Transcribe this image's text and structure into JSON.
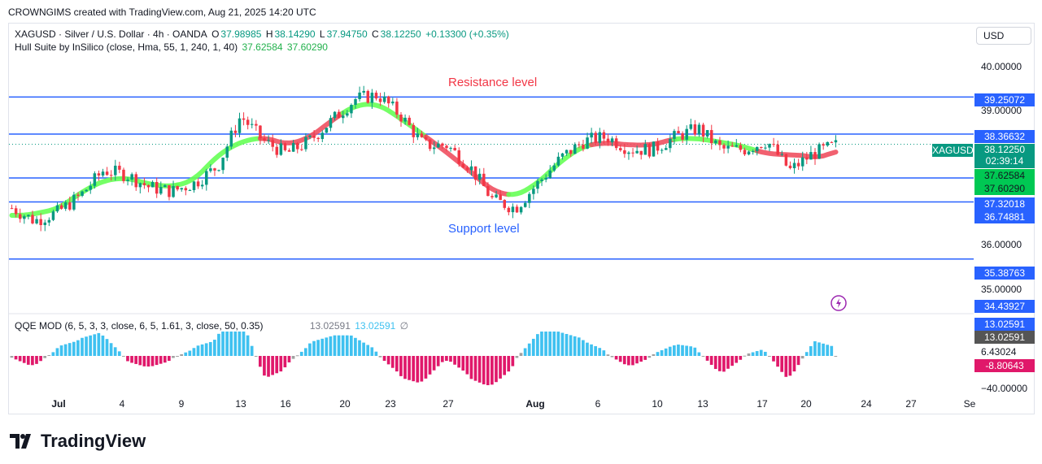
{
  "header": "CROWNGIMS created with TradingView.com, Aug 21, 2025 14:20 UTC",
  "legend": {
    "symbol": "XAGUSD · Silver / U.S. Dollar · 4h · OANDA",
    "o_label": "O",
    "o": "37.98985",
    "h_label": "H",
    "h": "38.14290",
    "l_label": "L",
    "l": "37.94750",
    "c_label": "C",
    "c": "38.12250",
    "change": "+0.13300 (+0.35%)",
    "hull_label": "Hull Suite by InSilico (close, Hma, 55, 1, 240, 1, 40)",
    "hull_v1": "37.62584",
    "hull_v2": "37.60290",
    "qqe_label": "QQE MOD (6, 5, 3, 3, close, 6, 5, 1.61, 3, close, 50, 0.35)",
    "qqe_v1": "13.02591",
    "qqe_v2": "13.02591",
    "qqe_v3": "∅"
  },
  "currency": "USD",
  "annotations": {
    "resistance": "Resistance level",
    "support": "Support level"
  },
  "price_axis": [
    "40.00000",
    "39.00000",
    "36.00000",
    "35.00000"
  ],
  "price_levels": {
    "resistance_top": "39.25072",
    "resistance": "38.36632",
    "symbol_tag": "XAGUSD",
    "last": "38.12250",
    "countdown": "02:39:14",
    "hull1": "37.62584",
    "hull2": "37.60290",
    "support_top": "37.32018",
    "support": "36.74881",
    "support_low": "35.38763",
    "lower": "34.43927"
  },
  "qqe_axis": {
    "v1": "13.02591",
    "v2": "13.02591",
    "mid": "6.43024",
    "neg": "-8.80643",
    "low": "−40.00000"
  },
  "x_axis": [
    "Jul",
    "4",
    "9",
    "13",
    "16",
    "20",
    "23",
    "27",
    "Aug",
    "6",
    "10",
    "13",
    "17",
    "20",
    "24",
    "27",
    "Se"
  ],
  "brand": "TradingView",
  "colors": {
    "bull": "#089981",
    "bear": "#f23645",
    "hull_up": "#66ff55",
    "hull_down": "#f05060",
    "line": "#2962ff",
    "qqe_up": "#3fc1f0",
    "qqe_down": "#e0186a",
    "qqe_neutral": "#a0a0a0"
  },
  "chart_data": {
    "type": "candlestick",
    "y_range": [
      34.2,
      40.4
    ],
    "horizontal_levels": [
      39.25072,
      38.36632,
      37.32018,
      36.74881,
      35.38763
    ],
    "close_series_approx": [
      36.6,
      36.3,
      36.5,
      36.9,
      37.5,
      37.4,
      37.1,
      37.0,
      37.2,
      37.6,
      38.8,
      38.2,
      37.9,
      38.2,
      38.7,
      39.2,
      39.3,
      38.8,
      38.1,
      38.1,
      37.6,
      36.8,
      36.6,
      37.2,
      37.8,
      38.2,
      38.3,
      38.0,
      38.0,
      38.3,
      38.5,
      38.0,
      38.0,
      38.2,
      37.5,
      37.9,
      38.1
    ],
    "hull_color_segments": [
      "up",
      "up",
      "up",
      "down",
      "up",
      "down",
      "up",
      "down",
      "up",
      "down"
    ]
  }
}
